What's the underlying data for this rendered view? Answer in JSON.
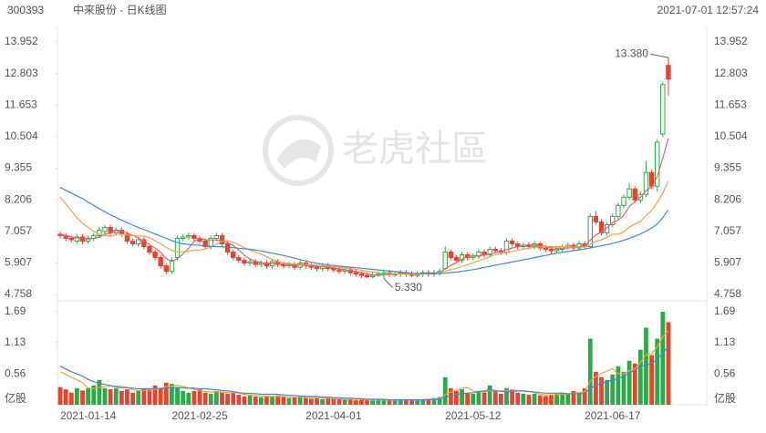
{
  "header": {
    "code": "300393",
    "title": "中来股份 - 日K线图",
    "timestamp": "2021-07-01 12:57:24"
  },
  "watermark": "老虎社區",
  "chart_data": {
    "type": "candlestick",
    "categories": [
      null,
      null,
      null,
      null,
      null,
      "2021-01-14",
      null,
      null,
      null,
      null,
      null,
      null,
      null,
      null,
      null,
      null,
      null,
      null,
      null,
      null,
      null,
      null,
      null,
      null,
      null,
      "2021-02-25",
      null,
      null,
      null,
      null,
      null,
      null,
      null,
      null,
      null,
      null,
      null,
      null,
      null,
      null,
      null,
      null,
      null,
      null,
      null,
      null,
      null,
      null,
      null,
      "2021-04-01",
      null,
      null,
      null,
      null,
      null,
      null,
      null,
      null,
      null,
      null,
      null,
      null,
      null,
      null,
      null,
      null,
      null,
      null,
      null,
      null,
      null,
      null,
      null,
      null,
      "2021-05-12",
      null,
      null,
      null,
      null,
      null,
      null,
      null,
      null,
      null,
      null,
      null,
      null,
      null,
      null,
      null,
      null,
      null,
      null,
      null,
      null,
      null,
      null,
      null,
      null,
      "2021-06-17",
      null,
      null,
      null,
      null,
      null,
      null,
      null,
      null,
      null,
      null
    ],
    "open": [
      6.95,
      6.9,
      6.8,
      6.7,
      6.85,
      6.7,
      6.8,
      6.9,
      7.05,
      7.2,
      7.0,
      7.1,
      6.95,
      6.7,
      6.6,
      6.75,
      6.5,
      6.3,
      6.1,
      5.8,
      5.6,
      6.1,
      6.8,
      6.85,
      6.9,
      6.8,
      6.7,
      6.5,
      6.8,
      6.9,
      6.6,
      6.3,
      6.1,
      6.0,
      5.9,
      5.95,
      5.85,
      5.9,
      5.8,
      5.95,
      5.85,
      5.8,
      5.85,
      5.75,
      5.9,
      5.8,
      5.75,
      5.7,
      5.8,
      5.7,
      5.65,
      5.6,
      5.65,
      5.55,
      5.5,
      5.45,
      5.4,
      5.45,
      5.5,
      5.55,
      5.48,
      5.5,
      5.55,
      5.5,
      5.45,
      5.5,
      5.55,
      5.5,
      5.55,
      5.7,
      6.3,
      6.1,
      6.0,
      6.2,
      6.1,
      6.15,
      6.3,
      6.2,
      6.4,
      6.35,
      6.3,
      6.7,
      6.6,
      6.5,
      6.55,
      6.5,
      6.6,
      6.45,
      6.4,
      6.35,
      6.4,
      6.5,
      6.55,
      6.45,
      6.6,
      6.5,
      7.6,
      7.4,
      7.0,
      7.3,
      7.6,
      8.0,
      8.3,
      8.6,
      8.2,
      8.4,
      9.2,
      8.7,
      10.6,
      13.1
    ],
    "high": [
      7.05,
      7.0,
      6.9,
      6.95,
      6.95,
      6.9,
      7.0,
      7.2,
      7.3,
      7.3,
      7.2,
      7.2,
      7.05,
      6.8,
      6.85,
      6.85,
      6.6,
      6.4,
      6.2,
      5.9,
      6.1,
      6.9,
      6.95,
      7.0,
      7.0,
      6.9,
      6.8,
      6.9,
      7.0,
      7.0,
      6.7,
      6.4,
      6.2,
      6.1,
      6.05,
      6.05,
      6.0,
      6.0,
      6.05,
      6.05,
      5.95,
      5.95,
      5.95,
      6.0,
      6.0,
      5.9,
      5.85,
      5.9,
      5.9,
      5.8,
      5.75,
      5.75,
      5.75,
      5.65,
      5.6,
      5.55,
      5.55,
      5.6,
      5.65,
      5.65,
      5.6,
      5.65,
      5.65,
      5.6,
      5.6,
      5.65,
      5.65,
      5.65,
      5.7,
      6.5,
      6.4,
      6.2,
      6.3,
      6.3,
      6.25,
      6.4,
      6.4,
      6.5,
      6.5,
      6.45,
      6.8,
      6.8,
      6.7,
      6.65,
      6.65,
      6.7,
      6.7,
      6.55,
      6.5,
      6.5,
      6.6,
      6.65,
      6.65,
      6.7,
      6.7,
      7.7,
      7.8,
      7.5,
      7.4,
      7.7,
      8.1,
      8.4,
      8.8,
      8.7,
      8.5,
      9.6,
      9.3,
      10.4,
      12.5,
      13.38
    ],
    "low": [
      6.8,
      6.7,
      6.65,
      6.6,
      6.6,
      6.6,
      6.7,
      6.8,
      6.95,
      6.9,
      6.9,
      6.85,
      6.6,
      6.5,
      6.5,
      6.4,
      6.2,
      6.0,
      5.7,
      5.5,
      5.5,
      6.0,
      6.7,
      6.75,
      6.7,
      6.6,
      6.4,
      6.4,
      6.7,
      6.5,
      6.2,
      6.0,
      5.9,
      5.8,
      5.8,
      5.75,
      5.75,
      5.7,
      5.7,
      5.75,
      5.7,
      5.7,
      5.65,
      5.65,
      5.7,
      5.65,
      5.6,
      5.6,
      5.6,
      5.55,
      5.5,
      5.5,
      5.45,
      5.4,
      5.35,
      5.35,
      5.35,
      5.4,
      5.33,
      5.4,
      5.4,
      5.4,
      5.4,
      5.38,
      5.38,
      5.4,
      5.4,
      5.4,
      5.45,
      5.65,
      6.0,
      5.9,
      5.9,
      6.0,
      6.0,
      6.05,
      6.1,
      6.1,
      6.25,
      6.2,
      6.2,
      6.5,
      6.4,
      6.4,
      6.4,
      6.4,
      6.35,
      6.3,
      6.25,
      6.25,
      6.3,
      6.4,
      6.35,
      6.35,
      6.4,
      6.45,
      7.3,
      6.9,
      6.9,
      7.2,
      7.5,
      7.9,
      8.2,
      8.1,
      8.1,
      8.3,
      8.6,
      8.5,
      10.5,
      12.0
    ],
    "close": [
      6.9,
      6.8,
      6.75,
      6.85,
      6.7,
      6.8,
      6.9,
      7.1,
      7.2,
      7.0,
      7.1,
      6.95,
      6.7,
      6.6,
      6.75,
      6.5,
      6.3,
      6.1,
      5.8,
      5.6,
      6.0,
      6.8,
      6.85,
      6.9,
      6.8,
      6.7,
      6.5,
      6.8,
      6.9,
      6.6,
      6.3,
      6.1,
      6.0,
      5.9,
      5.95,
      5.85,
      5.9,
      5.8,
      5.95,
      5.85,
      5.8,
      5.85,
      5.75,
      5.9,
      5.8,
      5.75,
      5.7,
      5.8,
      5.7,
      5.65,
      5.6,
      5.65,
      5.55,
      5.5,
      5.45,
      5.4,
      5.45,
      5.5,
      5.55,
      5.5,
      5.5,
      5.55,
      5.5,
      5.45,
      5.5,
      5.55,
      5.5,
      5.55,
      5.6,
      6.3,
      6.1,
      6.0,
      6.2,
      6.1,
      6.15,
      6.3,
      6.2,
      6.4,
      6.35,
      6.3,
      6.7,
      6.6,
      6.5,
      6.55,
      6.5,
      6.6,
      6.45,
      6.4,
      6.35,
      6.4,
      6.5,
      6.55,
      6.45,
      6.6,
      6.5,
      7.6,
      7.4,
      7.0,
      7.3,
      7.6,
      8.0,
      8.3,
      8.6,
      8.2,
      8.4,
      9.2,
      8.7,
      10.3,
      12.4,
      12.6
    ],
    "volume": [
      0.32,
      0.28,
      0.22,
      0.3,
      0.26,
      0.3,
      0.35,
      0.45,
      0.3,
      0.28,
      0.3,
      0.25,
      0.28,
      0.22,
      0.25,
      0.3,
      0.28,
      0.35,
      0.3,
      0.4,
      0.38,
      0.32,
      0.25,
      0.22,
      0.25,
      0.28,
      0.22,
      0.2,
      0.25,
      0.22,
      0.2,
      0.22,
      0.18,
      0.15,
      0.17,
      0.15,
      0.14,
      0.16,
      0.15,
      0.17,
      0.14,
      0.12,
      0.13,
      0.15,
      0.12,
      0.11,
      0.12,
      0.1,
      0.12,
      0.11,
      0.1,
      0.09,
      0.1,
      0.08,
      0.09,
      0.1,
      0.08,
      0.09,
      0.1,
      0.09,
      0.08,
      0.09,
      0.1,
      0.09,
      0.08,
      0.1,
      0.11,
      0.12,
      0.14,
      0.5,
      0.3,
      0.25,
      0.28,
      0.22,
      0.2,
      0.24,
      0.22,
      0.35,
      0.25,
      0.2,
      0.3,
      0.28,
      0.22,
      0.2,
      0.18,
      0.2,
      0.17,
      0.16,
      0.18,
      0.2,
      0.22,
      0.2,
      0.25,
      0.22,
      0.3,
      1.2,
      0.6,
      0.5,
      0.45,
      0.55,
      0.7,
      0.6,
      0.8,
      0.75,
      1.0,
      1.4,
      0.9,
      1.2,
      1.69,
      1.5
    ],
    "up_color": "#2ea84a",
    "down_color": "#e8432c",
    "series": [
      {
        "color": "#e0607a",
        "values": [
          6.95,
          6.9,
          6.85,
          6.82,
          6.8,
          6.78,
          6.8,
          6.85,
          6.95,
          7.0,
          7.08,
          7.07,
          6.99,
          6.91,
          6.82,
          6.7,
          6.57,
          6.45,
          6.29,
          6.06,
          5.96,
          6.06,
          6.23,
          6.43,
          6.69,
          6.81,
          6.75,
          6.74,
          6.74,
          6.7,
          6.64,
          6.54,
          6.38,
          6.18,
          6.05,
          5.96,
          5.92,
          5.88,
          5.89,
          5.87,
          5.86,
          5.85,
          5.83,
          5.83,
          5.82,
          5.81,
          5.78,
          5.77,
          5.75,
          5.72,
          5.69,
          5.66,
          5.63,
          5.59,
          5.55,
          5.51,
          5.47,
          5.46,
          5.47,
          5.48,
          5.5,
          5.52,
          5.52,
          5.51,
          5.5,
          5.51,
          5.51,
          5.52,
          5.54,
          5.7,
          5.81,
          5.91,
          6.04,
          6.14,
          6.17,
          6.17,
          6.19,
          6.23,
          6.28,
          6.31,
          6.39,
          6.45,
          6.49,
          6.54,
          6.57,
          6.55,
          6.52,
          6.5,
          6.46,
          6.44,
          6.44,
          6.45,
          6.46,
          6.5,
          6.52,
          6.74,
          6.93,
          7.03,
          7.18,
          7.38,
          7.46,
          7.64,
          7.96,
          8.14,
          8.3,
          8.54,
          8.68,
          9.04,
          9.72,
          10.44
        ]
      },
      {
        "color": "#f3a23f",
        "values": [
          8.3,
          8.05,
          7.8,
          7.55,
          7.35,
          7.2,
          7.05,
          6.95,
          6.9,
          6.88,
          6.94,
          6.96,
          6.92,
          6.9,
          6.89,
          6.89,
          6.82,
          6.72,
          6.6,
          6.47,
          6.36,
          6.31,
          6.31,
          6.33,
          6.37,
          6.38,
          6.41,
          6.48,
          6.59,
          6.69,
          6.72,
          6.65,
          6.57,
          6.46,
          6.37,
          6.3,
          6.23,
          6.13,
          6.04,
          5.96,
          5.91,
          5.89,
          5.86,
          5.86,
          5.85,
          5.84,
          5.82,
          5.8,
          5.79,
          5.77,
          5.75,
          5.72,
          5.7,
          5.67,
          5.64,
          5.6,
          5.57,
          5.55,
          5.53,
          5.52,
          5.5,
          5.5,
          5.49,
          5.49,
          5.49,
          5.5,
          5.51,
          5.52,
          5.53,
          5.6,
          5.66,
          5.71,
          5.78,
          5.84,
          5.91,
          5.99,
          6.05,
          6.13,
          6.21,
          6.24,
          6.28,
          6.32,
          6.36,
          6.41,
          6.44,
          6.47,
          6.49,
          6.5,
          6.5,
          6.5,
          6.5,
          6.5,
          6.49,
          6.48,
          6.48,
          6.59,
          6.69,
          6.75,
          6.84,
          6.95,
          6.95,
          7.04,
          7.21,
          7.32,
          7.41,
          7.64,
          7.81,
          8.11,
          8.45,
          8.87
        ]
      },
      {
        "color": "#3b8bd9",
        "values": [
          8.65,
          8.55,
          8.45,
          8.35,
          8.25,
          8.12,
          8.0,
          7.88,
          7.77,
          7.66,
          7.56,
          7.46,
          7.37,
          7.28,
          7.2,
          7.12,
          7.04,
          6.96,
          6.88,
          6.8,
          6.72,
          6.65,
          6.6,
          6.58,
          6.56,
          6.55,
          6.53,
          6.51,
          6.5,
          6.49,
          6.48,
          6.46,
          6.44,
          6.42,
          6.4,
          6.37,
          6.34,
          6.3,
          6.26,
          6.22,
          6.18,
          6.13,
          6.08,
          6.03,
          5.98,
          5.93,
          5.89,
          5.86,
          5.83,
          5.81,
          5.79,
          5.77,
          5.75,
          5.73,
          5.71,
          5.69,
          5.67,
          5.65,
          5.63,
          5.61,
          5.59,
          5.57,
          5.55,
          5.53,
          5.52,
          5.52,
          5.52,
          5.52,
          5.52,
          5.53,
          5.55,
          5.57,
          5.6,
          5.63,
          5.66,
          5.7,
          5.74,
          5.78,
          5.82,
          5.86,
          5.9,
          5.94,
          5.98,
          6.02,
          6.06,
          6.1,
          6.14,
          6.18,
          6.22,
          6.26,
          6.29,
          6.32,
          6.35,
          6.38,
          6.41,
          6.45,
          6.49,
          6.53,
          6.57,
          6.62,
          6.67,
          6.73,
          6.8,
          6.88,
          6.96,
          7.06,
          7.18,
          7.32,
          7.55,
          7.85
        ]
      }
    ],
    "volume_series": [
      {
        "color": "#f3a23f",
        "values": [
          0.6,
          0.55,
          0.5,
          0.45,
          0.4,
          0.3,
          0.3,
          0.32,
          0.33,
          0.34,
          0.34,
          0.33,
          0.32,
          0.27,
          0.26,
          0.26,
          0.26,
          0.28,
          0.3,
          0.33,
          0.34,
          0.35,
          0.33,
          0.31,
          0.28,
          0.26,
          0.24,
          0.23,
          0.24,
          0.23,
          0.22,
          0.22,
          0.21,
          0.19,
          0.18,
          0.17,
          0.16,
          0.15,
          0.15,
          0.15,
          0.15,
          0.14,
          0.14,
          0.14,
          0.13,
          0.13,
          0.13,
          0.12,
          0.12,
          0.11,
          0.11,
          0.1,
          0.1,
          0.1,
          0.1,
          0.09,
          0.09,
          0.09,
          0.09,
          0.09,
          0.09,
          0.09,
          0.09,
          0.09,
          0.09,
          0.09,
          0.1,
          0.1,
          0.11,
          0.19,
          0.23,
          0.26,
          0.3,
          0.31,
          0.25,
          0.24,
          0.23,
          0.26,
          0.25,
          0.25,
          0.26,
          0.27,
          0.26,
          0.25,
          0.24,
          0.22,
          0.19,
          0.18,
          0.18,
          0.18,
          0.19,
          0.19,
          0.21,
          0.22,
          0.24,
          0.43,
          0.51,
          0.57,
          0.61,
          0.66,
          0.56,
          0.56,
          0.62,
          0.65,
          0.77,
          0.91,
          0.93,
          1.05,
          1.24,
          1.34
        ]
      },
      {
        "color": "#3b8bd9",
        "values": [
          0.7,
          0.65,
          0.6,
          0.56,
          0.52,
          0.46,
          0.42,
          0.39,
          0.37,
          0.35,
          0.32,
          0.31,
          0.31,
          0.3,
          0.29,
          0.29,
          0.29,
          0.3,
          0.29,
          0.3,
          0.31,
          0.31,
          0.31,
          0.3,
          0.3,
          0.29,
          0.29,
          0.28,
          0.27,
          0.26,
          0.25,
          0.24,
          0.22,
          0.21,
          0.21,
          0.2,
          0.19,
          0.19,
          0.19,
          0.19,
          0.18,
          0.17,
          0.17,
          0.16,
          0.15,
          0.15,
          0.15,
          0.14,
          0.14,
          0.13,
          0.13,
          0.12,
          0.12,
          0.11,
          0.11,
          0.1,
          0.1,
          0.1,
          0.1,
          0.09,
          0.09,
          0.09,
          0.09,
          0.09,
          0.09,
          0.09,
          0.09,
          0.1,
          0.1,
          0.14,
          0.16,
          0.18,
          0.2,
          0.21,
          0.22,
          0.24,
          0.25,
          0.27,
          0.26,
          0.24,
          0.24,
          0.24,
          0.25,
          0.25,
          0.24,
          0.23,
          0.22,
          0.21,
          0.21,
          0.21,
          0.21,
          0.2,
          0.2,
          0.2,
          0.21,
          0.3,
          0.35,
          0.39,
          0.42,
          0.45,
          0.47,
          0.52,
          0.58,
          0.63,
          0.7,
          0.72,
          0.75,
          0.82,
          0.95,
          1.05
        ]
      }
    ],
    "ylim": [
      4.758,
      13.952
    ],
    "yticks": [
      13.952,
      12.803,
      11.653,
      10.504,
      9.355,
      8.206,
      7.057,
      5.907,
      4.758
    ],
    "y2lim": [
      0,
      1.69
    ],
    "y2ticks": [
      1.69,
      1.13,
      0.56
    ],
    "volume_unit": "亿股",
    "annotations": [
      {
        "value": 13.38,
        "label": "13.380"
      },
      {
        "value": 5.33,
        "label": "5.330"
      }
    ]
  }
}
